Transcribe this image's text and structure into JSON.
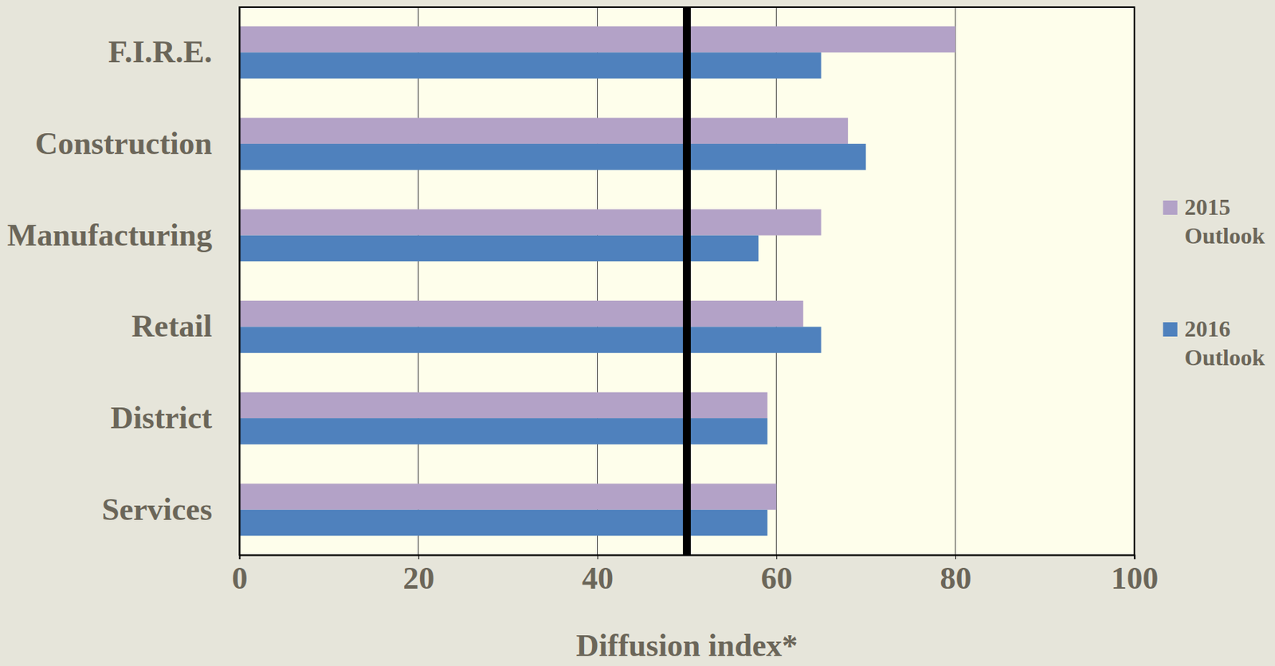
{
  "chart_data": {
    "type": "bar",
    "orientation": "horizontal",
    "categories": [
      "F.I.R.E.",
      "Construction",
      "Manufacturing",
      "Retail",
      "District",
      "Services"
    ],
    "series": [
      {
        "name": "2015 Outlook",
        "color": "#b3a2c7",
        "values": [
          80,
          68,
          65,
          63,
          59,
          60
        ]
      },
      {
        "name": "2016 Outlook",
        "color": "#4f81bd",
        "values": [
          65,
          70,
          58,
          65,
          59,
          59
        ]
      }
    ],
    "x_label": "Diffusion index*",
    "xlim": [
      0,
      100
    ],
    "xticks": [
      0,
      20,
      40,
      60,
      80,
      100
    ],
    "reference_line": 50,
    "grid": true,
    "legend": "right"
  }
}
